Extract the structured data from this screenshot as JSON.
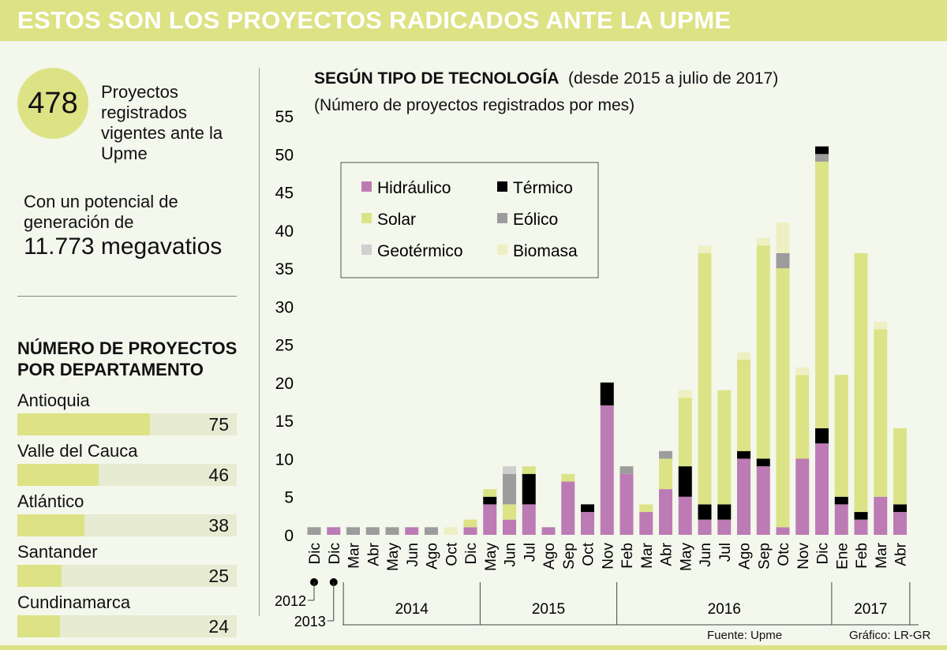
{
  "header": {
    "title": "ESTOS SON LOS PROYECTOS RADICADOS ANTE LA UPME"
  },
  "summary": {
    "count": "478",
    "count_text": [
      "Proyectos",
      "registrados",
      "vigentes ante la",
      "Upme"
    ],
    "potential_text": [
      "Con un potencial de",
      "generación de"
    ],
    "potential_value": "11.773 megavatios"
  },
  "departments": {
    "title": [
      "NÚMERO DE PROYECTOS",
      "POR DEPARTAMENTO"
    ],
    "items": [
      {
        "name": "Antioquia",
        "value": 75
      },
      {
        "name": "Valle del Cauca",
        "value": 46
      },
      {
        "name": "Atlántico",
        "value": 38
      },
      {
        "name": "Santander",
        "value": 25
      },
      {
        "name": "Cundinamarca",
        "value": 24
      }
    ]
  },
  "footer": {
    "source": "Fuente: Upme",
    "credit": "Gráfico: LR-GR"
  },
  "chart_data": {
    "type": "bar",
    "stacked": true,
    "title": "SEGÚN TIPO DE TECNOLOGÍA",
    "title_note": "(desde 2015 a julio de 2017)",
    "subtitle": "(Número de proyectos registrados por mes)",
    "ylim": [
      0,
      55
    ],
    "yticks": [
      0,
      5,
      10,
      15,
      20,
      25,
      30,
      35,
      40,
      45,
      50,
      55
    ],
    "grid": false,
    "legend": "top-left",
    "colors": {
      "Hidráulico": "#bc7bb4",
      "Térmico": "#000000",
      "Solar": "#dce386",
      "Eólico": "#9c9c9c",
      "Geotérmico": "#cfcfcf",
      "Biomasa": "#eef0c4"
    },
    "legend_items": [
      "Hidráulico",
      "Térmico",
      "Solar",
      "Eólico",
      "Geotérmico",
      "Biomasa"
    ],
    "year_groups": [
      {
        "label": "2012"
      },
      {
        "label": "2013"
      },
      {
        "label": "2014"
      },
      {
        "label": "2015"
      },
      {
        "label": "2016"
      },
      {
        "label": "2017"
      }
    ],
    "bars": [
      {
        "month": "Dic",
        "year": "2012",
        "segments": [
          [
            "Eólico",
            1
          ]
        ]
      },
      {
        "month": "Dic",
        "year": "2013",
        "segments": [
          [
            "Hidráulico",
            1
          ]
        ]
      },
      {
        "month": "Mar",
        "year": "2014",
        "segments": [
          [
            "Eólico",
            1
          ]
        ]
      },
      {
        "month": "Abr",
        "year": "2014",
        "segments": [
          [
            "Eólico",
            1
          ]
        ]
      },
      {
        "month": "May",
        "year": "2014",
        "segments": [
          [
            "Eólico",
            1
          ]
        ]
      },
      {
        "month": "Jun",
        "year": "2014",
        "segments": [
          [
            "Hidráulico",
            1
          ]
        ]
      },
      {
        "month": "Ago",
        "year": "2014",
        "segments": [
          [
            "Eólico",
            1
          ]
        ]
      },
      {
        "month": "Oct",
        "year": "2014",
        "segments": [
          [
            "Biomasa",
            1
          ]
        ]
      },
      {
        "month": "Dic",
        "year": "2014",
        "segments": [
          [
            "Hidráulico",
            1
          ],
          [
            "Solar",
            1
          ]
        ]
      },
      {
        "month": "May",
        "year": "2015",
        "segments": [
          [
            "Hidráulico",
            4
          ],
          [
            "Térmico",
            1
          ],
          [
            "Solar",
            1
          ]
        ]
      },
      {
        "month": "Jun",
        "year": "2015",
        "segments": [
          [
            "Hidráulico",
            2
          ],
          [
            "Solar",
            2
          ],
          [
            "Eólico",
            4
          ],
          [
            "Geotérmico",
            1
          ]
        ]
      },
      {
        "month": "Jul",
        "year": "2015",
        "segments": [
          [
            "Hidráulico",
            4
          ],
          [
            "Térmico",
            4
          ],
          [
            "Solar",
            1
          ]
        ]
      },
      {
        "month": "Ago",
        "year": "2015",
        "segments": [
          [
            "Hidráulico",
            1
          ]
        ]
      },
      {
        "month": "Sep",
        "year": "2015",
        "segments": [
          [
            "Hidráulico",
            7
          ],
          [
            "Solar",
            1
          ]
        ]
      },
      {
        "month": "Oct",
        "year": "2015",
        "segments": [
          [
            "Hidráulico",
            3
          ],
          [
            "Térmico",
            1
          ]
        ]
      },
      {
        "month": "Nov",
        "year": "2015",
        "segments": [
          [
            "Hidráulico",
            17
          ],
          [
            "Térmico",
            3
          ]
        ]
      },
      {
        "month": "Feb",
        "year": "2016",
        "segments": [
          [
            "Hidráulico",
            8
          ],
          [
            "Eólico",
            1
          ]
        ]
      },
      {
        "month": "Mar",
        "year": "2016",
        "segments": [
          [
            "Hidráulico",
            3
          ],
          [
            "Solar",
            1
          ]
        ]
      },
      {
        "month": "Abr",
        "year": "2016",
        "segments": [
          [
            "Hidráulico",
            6
          ],
          [
            "Solar",
            4
          ],
          [
            "Eólico",
            1
          ]
        ]
      },
      {
        "month": "May",
        "year": "2016",
        "segments": [
          [
            "Hidráulico",
            5
          ],
          [
            "Térmico",
            4
          ],
          [
            "Solar",
            9
          ],
          [
            "Biomasa",
            1
          ]
        ]
      },
      {
        "month": "Jun",
        "year": "2016",
        "segments": [
          [
            "Hidráulico",
            2
          ],
          [
            "Térmico",
            2
          ],
          [
            "Solar",
            33
          ],
          [
            "Biomasa",
            1
          ]
        ]
      },
      {
        "month": "Jul",
        "year": "2016",
        "segments": [
          [
            "Hidráulico",
            2
          ],
          [
            "Térmico",
            2
          ],
          [
            "Solar",
            15
          ]
        ]
      },
      {
        "month": "Ago",
        "year": "2016",
        "segments": [
          [
            "Hidráulico",
            10
          ],
          [
            "Térmico",
            1
          ],
          [
            "Solar",
            12
          ],
          [
            "Biomasa",
            1
          ]
        ]
      },
      {
        "month": "Sep",
        "year": "2016",
        "segments": [
          [
            "Hidráulico",
            9
          ],
          [
            "Térmico",
            1
          ],
          [
            "Solar",
            28
          ],
          [
            "Biomasa",
            1
          ]
        ]
      },
      {
        "month": "Otc",
        "year": "2016",
        "segments": [
          [
            "Hidráulico",
            1
          ],
          [
            "Solar",
            34
          ],
          [
            "Eólico",
            2
          ],
          [
            "Biomasa",
            4
          ]
        ]
      },
      {
        "month": "Nov",
        "year": "2016",
        "segments": [
          [
            "Hidráulico",
            10
          ],
          [
            "Solar",
            11
          ],
          [
            "Biomasa",
            1
          ]
        ]
      },
      {
        "month": "Dic",
        "year": "2016",
        "segments": [
          [
            "Hidráulico",
            12
          ],
          [
            "Térmico",
            2
          ],
          [
            "Solar",
            35
          ],
          [
            "Eólico",
            1
          ],
          [
            "Térmico",
            1
          ]
        ]
      },
      {
        "month": "Ene",
        "year": "2017",
        "segments": [
          [
            "Hidráulico",
            4
          ],
          [
            "Térmico",
            1
          ],
          [
            "Solar",
            16
          ]
        ]
      },
      {
        "month": "Feb",
        "year": "2017",
        "segments": [
          [
            "Hidráulico",
            2
          ],
          [
            "Térmico",
            1
          ],
          [
            "Solar",
            34
          ]
        ]
      },
      {
        "month": "Mar",
        "year": "2017",
        "segments": [
          [
            "Hidráulico",
            5
          ],
          [
            "Solar",
            22
          ],
          [
            "Biomasa",
            1
          ]
        ]
      },
      {
        "month": "Abr",
        "year": "2017",
        "segments": [
          [
            "Hidráulico",
            3
          ],
          [
            "Térmico",
            1
          ],
          [
            "Solar",
            10
          ]
        ]
      }
    ]
  }
}
